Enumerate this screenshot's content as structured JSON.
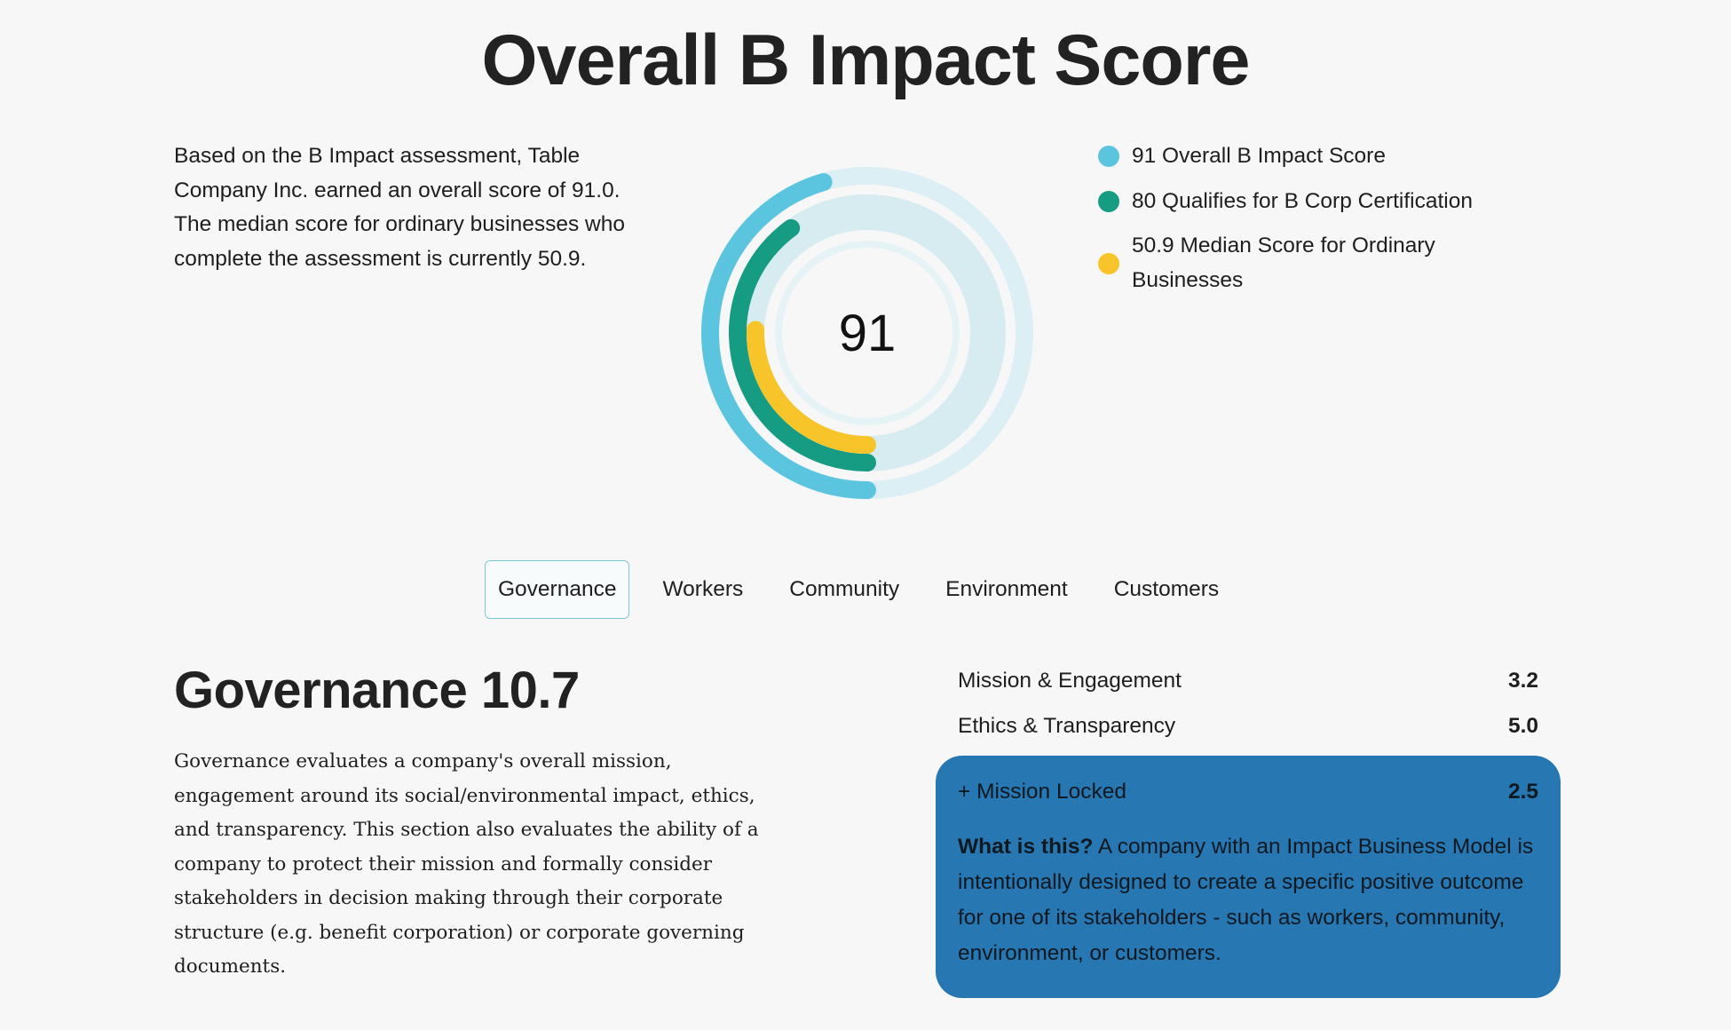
{
  "title": "Overall B Impact Score",
  "intro": "Based on the B Impact assessment, Table Company Inc. earned an overall score of 91.0. The median score for ordinary businesses who complete the assessment is currently 50.9.",
  "score": {
    "center_label": "91",
    "max": 200,
    "rings": [
      {
        "name": "Overall B Impact Score",
        "value": 91,
        "color": "#5bc5e0",
        "track": "#dceff4"
      },
      {
        "name": "Qualifies for B Corp Certification",
        "value": 80,
        "color": "#159c83",
        "track": "#d7ecf1"
      },
      {
        "name": "Median Score for Ordinary Businesses",
        "value": 50.9,
        "color": "#f7c52a",
        "track": "#d7ecf1"
      }
    ]
  },
  "legend": [
    {
      "text": "91 Overall B Impact Score",
      "color": "#5bc5e0"
    },
    {
      "text": "80 Qualifies for B Corp Certification",
      "color": "#159c83"
    },
    {
      "text": "50.9 Median Score for Ordinary Businesses",
      "color": "#f7c52a"
    }
  ],
  "tabs": [
    "Governance",
    "Workers",
    "Community",
    "Environment",
    "Customers"
  ],
  "active_tab": "Governance",
  "section": {
    "title": "Governance 10.7",
    "description": "Governance evaluates a company's overall mission, engagement around its social/environmental impact, ethics, and transparency. This section also evaluates the ability of a company to protect their mission and formally consider stakeholders in decision making through their corporate structure (e.g. benefit corporation) or corporate governing documents.",
    "metrics": [
      {
        "label": "Mission & Engagement",
        "value": "3.2"
      },
      {
        "label": "Ethics & Transparency",
        "value": "5.0"
      }
    ],
    "mission_locked": {
      "label": "+ Mission Locked",
      "value": "2.5",
      "question": "What is this?",
      "answer": "A company with an Impact Business Model is intentionally designed to create a specific positive outcome for one of its stakeholders - such as workers, community, environment, or customers.",
      "bg_color": "#2777b2"
    }
  }
}
